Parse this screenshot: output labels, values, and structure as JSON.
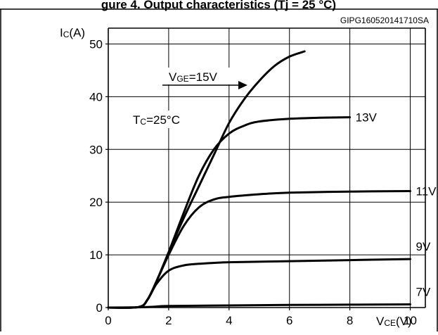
{
  "figure": {
    "id_code": "GIPG160520141710SA",
    "cut_title": "gure 4. Output characteristics (Tj = 25 °C)"
  },
  "chart_data": {
    "type": "line",
    "title": "",
    "xlabel_main": "V",
    "xlabel_sub": "CE",
    "xlabel_unit": "(V)",
    "ylabel_main": "I",
    "ylabel_sub": "C",
    "ylabel_unit": "(A)",
    "xlim": [
      0,
      10.5
    ],
    "ylim": [
      0,
      53
    ],
    "x_ticks": [
      "0",
      "2",
      "4",
      "6",
      "8",
      "10"
    ],
    "y_ticks": [
      "0",
      "10",
      "20",
      "30",
      "40",
      "50"
    ],
    "x_tick_values": [
      0,
      2,
      4,
      6,
      8,
      10
    ],
    "y_tick_values": [
      0,
      10,
      20,
      30,
      40,
      50
    ],
    "grid": true,
    "condition_main": "T",
    "condition_sub": "C",
    "condition_rest": "=25°C",
    "vge_main": "V",
    "vge_sub": "GE",
    "vge_rest": "=15V",
    "series": [
      {
        "name": "15V",
        "label": "",
        "x": [
          0,
          1.0,
          1.3,
          1.6,
          2.0,
          2.5,
          3.0,
          3.5,
          4.0,
          4.5,
          5.0,
          5.5,
          6.0,
          6.5
        ],
        "y": [
          0,
          0.1,
          1.5,
          5,
          10.5,
          17,
          23,
          29,
          35,
          39.5,
          43,
          45.8,
          47.6,
          48.6
        ]
      },
      {
        "name": "13V",
        "label": "13V",
        "x": [
          0,
          1.0,
          1.3,
          1.6,
          2.0,
          2.5,
          3.0,
          3.5,
          4.0,
          4.5,
          5.0,
          6.0,
          7.0,
          8.0
        ],
        "y": [
          0,
          0.1,
          1.5,
          5,
          10.5,
          18,
          25,
          30,
          33,
          34.5,
          35.3,
          35.8,
          36.0,
          36.1
        ]
      },
      {
        "name": "11V",
        "label": "11V",
        "x": [
          0,
          1.0,
          1.3,
          1.6,
          2.0,
          2.5,
          3.0,
          3.5,
          4.0,
          5.0,
          6.0,
          8.0,
          10.0
        ],
        "y": [
          0,
          0.1,
          1.5,
          5,
          10,
          15.5,
          19,
          20.5,
          21.0,
          21.5,
          21.8,
          22.0,
          22.1
        ]
      },
      {
        "name": "9V",
        "label": "9V",
        "x": [
          0,
          1.0,
          1.3,
          1.6,
          2.0,
          2.5,
          3.0,
          4.0,
          6.0,
          8.0,
          10.0
        ],
        "y": [
          0,
          0.1,
          1.5,
          4.5,
          7.0,
          8.0,
          8.3,
          8.6,
          8.8,
          9.0,
          9.2
        ]
      },
      {
        "name": "7V",
        "label": "7V",
        "x": [
          0,
          1.0,
          1.5,
          2.0,
          4.0,
          6.0,
          8.0,
          10.0
        ],
        "y": [
          0,
          0.05,
          0.15,
          0.3,
          0.4,
          0.5,
          0.55,
          0.6
        ]
      }
    ]
  }
}
